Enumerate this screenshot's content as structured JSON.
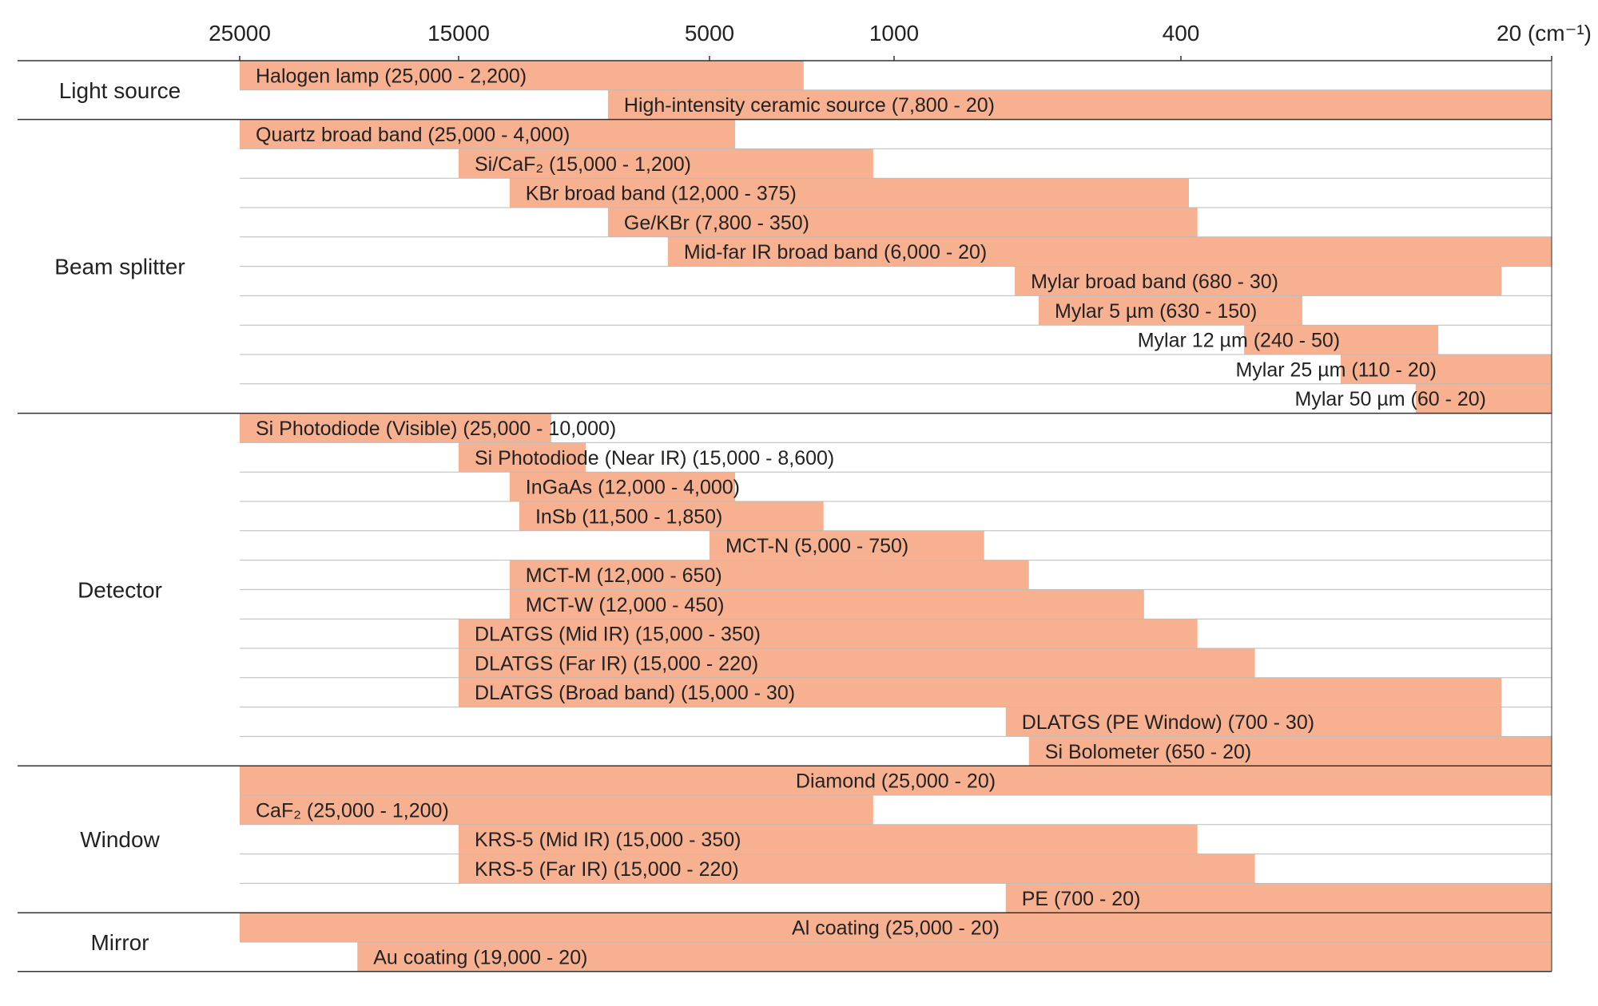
{
  "chart_data": {
    "type": "range-bar",
    "axis": {
      "ticks": [
        {
          "label": "25000",
          "value": 25000
        },
        {
          "label": "15000",
          "value": 15000
        },
        {
          "label": "5000",
          "value": 5000
        },
        {
          "label": "1000",
          "value": 1000
        },
        {
          "label": "400",
          "value": 400
        },
        {
          "label": "20 (cm⁻¹)",
          "value": 20
        }
      ],
      "unit": "cm⁻¹",
      "direction": "decreasing",
      "range": [
        25000,
        20
      ]
    },
    "colors": {
      "bar": "#f8b190",
      "rule": "#333333",
      "grid": "#bbbbbb",
      "text": "#222222"
    },
    "groups": [
      {
        "name": "Light source",
        "rows": [
          {
            "label": "Halogen lamp (25,000 - 2,200)",
            "start": 25000,
            "end": 2200
          },
          {
            "label": "High-intensity ceramic source (7,800 - 20)",
            "start": 7800,
            "end": 20
          }
        ]
      },
      {
        "name": "Beam splitter",
        "rows": [
          {
            "label": "Quartz broad band (25,000 - 4,000)",
            "start": 25000,
            "end": 4000
          },
          {
            "label": "Si/CaF₂ (15,000 - 1,200)",
            "start": 15000,
            "end": 1200
          },
          {
            "label": "KBr broad band (12,000 - 375)",
            "start": 12000,
            "end": 375
          },
          {
            "label": "Ge/KBr (7,800 - 350)",
            "start": 7800,
            "end": 350
          },
          {
            "label": "Mid-far IR broad band (6,000 - 20)",
            "start": 6000,
            "end": 20
          },
          {
            "label": "Mylar broad band (680 - 30)",
            "start": 680,
            "end": 30
          },
          {
            "label": "Mylar 5 µm (630 - 150)",
            "start": 630,
            "end": 150
          },
          {
            "label": "Mylar 12 µm (240 - 50)",
            "start": 240,
            "end": 50
          },
          {
            "label": "Mylar 25 µm (110 - 20)",
            "start": 110,
            "end": 20
          },
          {
            "label": "Mylar 50 µm (60 - 20)",
            "start": 60,
            "end": 20
          }
        ]
      },
      {
        "name": "Detector",
        "rows": [
          {
            "label": "Si Photodiode (Visible) (25,000 - 10,000)",
            "start": 25000,
            "end": 10000
          },
          {
            "label": "Si Photodiode (Near IR) (15,000 - 8,600)",
            "start": 15000,
            "end": 8600
          },
          {
            "label": "InGaAs (12,000 - 4,000)",
            "start": 12000,
            "end": 4000
          },
          {
            "label": "InSb (11,500 - 1,850)",
            "start": 11500,
            "end": 1850
          },
          {
            "label": "MCT-N (5,000 - 750)",
            "start": 5000,
            "end": 750
          },
          {
            "label": "MCT-M (12,000 - 650)",
            "start": 12000,
            "end": 650
          },
          {
            "label": "MCT-W (12,000 - 450)",
            "start": 12000,
            "end": 450
          },
          {
            "label": "DLATGS (Mid IR) (15,000 - 350)",
            "start": 15000,
            "end": 350
          },
          {
            "label": "DLATGS (Far IR) (15,000 - 220)",
            "start": 15000,
            "end": 220
          },
          {
            "label": "DLATGS (Broad band) (15,000 - 30)",
            "start": 15000,
            "end": 30
          },
          {
            "label": "DLATGS (PE Window) (700 - 30)",
            "start": 700,
            "end": 30
          },
          {
            "label": "Si Bolometer (650 - 20)",
            "start": 650,
            "end": 20
          }
        ]
      },
      {
        "name": "Window",
        "rows": [
          {
            "label": "Diamond (25,000 - 20)",
            "start": 25000,
            "end": 20
          },
          {
            "label": "CaF₂ (25,000 - 1,200)",
            "start": 25000,
            "end": 1200
          },
          {
            "label": "KRS-5 (Mid IR) (15,000 - 350)",
            "start": 15000,
            "end": 350
          },
          {
            "label": "KRS-5 (Far IR) (15,000 - 220)",
            "start": 15000,
            "end": 220
          },
          {
            "label": "PE (700 - 20)",
            "start": 700,
            "end": 20
          }
        ]
      },
      {
        "name": "Mirror",
        "rows": [
          {
            "label": "Al coating (25,000 - 20)",
            "start": 25000,
            "end": 20
          },
          {
            "label": "Au coating (19,000 - 20)",
            "start": 19000,
            "end": 20
          }
        ]
      }
    ]
  }
}
